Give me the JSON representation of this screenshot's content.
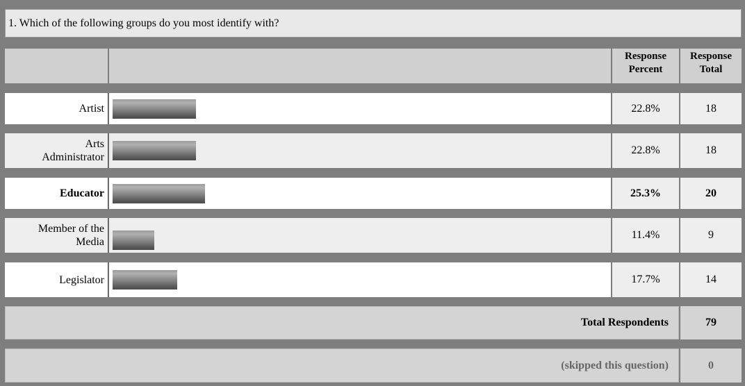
{
  "question": {
    "title": "1. Which of the following groups do you most identify with?"
  },
  "header": {
    "percent_label_1": "Response",
    "percent_label_2": "Percent",
    "total_label_1": "Response",
    "total_label_2": "Total"
  },
  "rows": [
    {
      "label_1": "Artist",
      "label_2": "",
      "percent": "22.8%",
      "total": "18",
      "fraction": 0.228,
      "bold": false
    },
    {
      "label_1": "Arts",
      "label_2": "Administrator",
      "percent": "22.8%",
      "total": "18",
      "fraction": 0.228,
      "bold": false
    },
    {
      "label_1": "Educator",
      "label_2": "",
      "percent": "25.3%",
      "total": "20",
      "fraction": 0.253,
      "bold": true
    },
    {
      "label_1": "Member of the",
      "label_2": "Media",
      "percent": "11.4%",
      "total": "9",
      "fraction": 0.114,
      "bold": false
    },
    {
      "label_1": "Legislator",
      "label_2": "",
      "percent": "17.7%",
      "total": "14",
      "fraction": 0.177,
      "bold": false
    }
  ],
  "summary": {
    "respondents_label": "Total Respondents",
    "respondents_value": "79",
    "skipped_label": "(skipped this question)",
    "skipped_value": "0"
  },
  "colors": {
    "band": "#7e7e7e",
    "header": "#d0d0d0",
    "title_bg": "#e9e9e9"
  }
}
